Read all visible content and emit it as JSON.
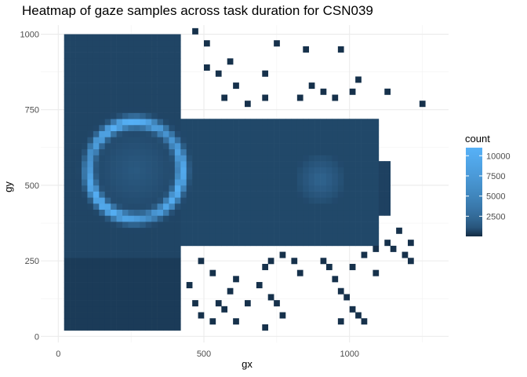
{
  "chart_data": {
    "type": "heatmap",
    "title": "Heatmap of gaze samples across task duration for CSN039",
    "xlabel": "gx",
    "ylabel": "gy",
    "xlim": [
      -60,
      1340
    ],
    "ylim": [
      -20,
      1030
    ],
    "x_ticks": [
      0,
      500,
      1000
    ],
    "y_ticks": [
      0,
      250,
      500,
      750,
      1000
    ],
    "x_tick_labels": [
      "0",
      "500",
      "1000"
    ],
    "y_tick_labels": [
      "0",
      "250",
      "500",
      "750",
      "1000"
    ],
    "grid": true,
    "legend": {
      "title": "count",
      "position": "right",
      "ticks": [
        2500,
        5000,
        7500,
        10000
      ],
      "tick_labels": [
        "2500",
        "5000",
        "7500",
        "10000"
      ],
      "range": [
        0,
        11000
      ]
    },
    "colors": {
      "low": "#132B43",
      "high": "#56B1F7"
    },
    "bin_width": 20,
    "dense_regions": [
      {
        "label": "left block",
        "x": [
          20,
          430
        ],
        "y": [
          270,
          1000
        ],
        "count": 400
      },
      {
        "label": "central band",
        "x": [
          430,
          1110
        ],
        "y": [
          310,
          720
        ],
        "count": 500
      },
      {
        "label": "right band",
        "x": [
          1110,
          1140
        ],
        "y": [
          400,
          590
        ],
        "count": 300
      },
      {
        "label": "lower left",
        "x": [
          20,
          420
        ],
        "y": [
          20,
          270
        ],
        "count": 150
      }
    ],
    "ring": {
      "center": [
        265,
        550
      ],
      "radius": 160,
      "peak_count": 10500
    },
    "hotspot": {
      "center": [
        900,
        520
      ],
      "radius": 90,
      "peak_count": 1500
    },
    "sparse_points": [
      [
        1250,
        770
      ],
      [
        960,
        940
      ],
      [
        850,
        950
      ],
      [
        750,
        960
      ],
      [
        1120,
        800
      ],
      [
        1020,
        850
      ],
      [
        580,
        900
      ],
      [
        500,
        960
      ],
      [
        460,
        1000
      ],
      [
        650,
        760
      ],
      [
        700,
        780
      ],
      [
        820,
        780
      ],
      [
        940,
        780
      ],
      [
        1000,
        800
      ],
      [
        560,
        780
      ],
      [
        600,
        820
      ],
      [
        860,
        820
      ],
      [
        900,
        800
      ],
      [
        1120,
        300
      ],
      [
        1140,
        280
      ],
      [
        1180,
        260
      ],
      [
        1200,
        300
      ],
      [
        1210,
        250
      ],
      [
        1160,
        340
      ],
      [
        1090,
        280
      ],
      [
        1060,
        300
      ],
      [
        1040,
        270
      ],
      [
        900,
        240
      ],
      [
        920,
        220
      ],
      [
        940,
        180
      ],
      [
        960,
        150
      ],
      [
        980,
        120
      ],
      [
        1000,
        80
      ],
      [
        1020,
        60
      ],
      [
        1040,
        40
      ],
      [
        960,
        40
      ],
      [
        820,
        200
      ],
      [
        800,
        240
      ],
      [
        760,
        260
      ],
      [
        720,
        240
      ],
      [
        700,
        220
      ],
      [
        680,
        160
      ],
      [
        720,
        120
      ],
      [
        740,
        100
      ],
      [
        760,
        60
      ],
      [
        700,
        20
      ],
      [
        640,
        100
      ],
      [
        600,
        180
      ],
      [
        580,
        140
      ],
      [
        560,
        80
      ],
      [
        520,
        200
      ],
      [
        480,
        240
      ],
      [
        480,
        60
      ],
      [
        520,
        40
      ],
      [
        540,
        100
      ],
      [
        600,
        40
      ],
      [
        440,
        160
      ],
      [
        460,
        100
      ],
      [
        1080,
        200
      ],
      [
        1000,
        230
      ],
      [
        500,
        880
      ],
      [
        540,
        860
      ],
      [
        700,
        860
      ]
    ]
  }
}
